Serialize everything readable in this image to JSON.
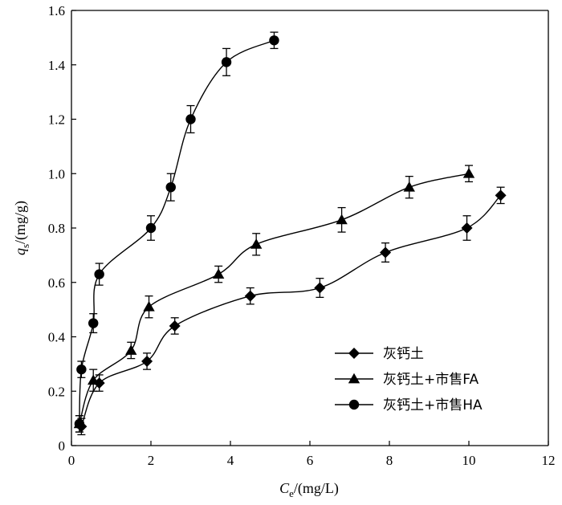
{
  "chart_data": {
    "type": "scatter",
    "title": "",
    "xlabel": {
      "italic": "C",
      "sub": "e",
      "rest": "/(mg/L)"
    },
    "ylabel": {
      "italic": "q",
      "sub": "s",
      "rest": "/(mg/g)"
    },
    "xlim": [
      0,
      12
    ],
    "ylim": [
      0,
      1.6
    ],
    "xticks": [
      0,
      2,
      4,
      6,
      8,
      10,
      12
    ],
    "yticks": [
      0,
      0.2,
      0.4,
      0.6,
      0.8,
      1.0,
      1.2,
      1.4,
      1.6
    ],
    "xtick_labels": [
      "0",
      "2",
      "4",
      "6",
      "8",
      "10",
      "12"
    ],
    "ytick_labels": [
      "0",
      "0.2",
      "0.4",
      "0.6",
      "0.8",
      "1.0",
      "1.2",
      "1.4",
      "1.6"
    ],
    "grid": false,
    "legend_position": "bottom-right",
    "series": [
      {
        "name": "灰钙土",
        "marker": "diamond",
        "x": [
          0.25,
          0.7,
          1.9,
          2.6,
          4.5,
          6.25,
          7.9,
          9.95,
          10.8
        ],
        "y": [
          0.07,
          0.23,
          0.31,
          0.44,
          0.55,
          0.58,
          0.71,
          0.8,
          0.92
        ],
        "err": [
          0.03,
          0.03,
          0.03,
          0.03,
          0.03,
          0.035,
          0.035,
          0.045,
          0.03
        ]
      },
      {
        "name": "灰钙土+市售FA",
        "marker": "triangle",
        "x": [
          0.2,
          0.55,
          1.5,
          1.95,
          3.7,
          4.65,
          6.8,
          8.5,
          10.0
        ],
        "y": [
          0.08,
          0.24,
          0.35,
          0.51,
          0.63,
          0.74,
          0.83,
          0.95,
          1.0
        ],
        "err": [
          0.03,
          0.04,
          0.03,
          0.04,
          0.03,
          0.04,
          0.045,
          0.04,
          0.03
        ]
      },
      {
        "name": "灰钙土+市售HA",
        "marker": "circle",
        "x": [
          0.2,
          0.25,
          0.55,
          0.7,
          2.0,
          2.5,
          3.0,
          3.9,
          5.1
        ],
        "y": [
          0.08,
          0.28,
          0.45,
          0.63,
          0.8,
          0.95,
          1.2,
          1.41,
          1.49
        ],
        "err": [
          0.03,
          0.03,
          0.035,
          0.04,
          0.045,
          0.05,
          0.05,
          0.05,
          0.03
        ]
      }
    ]
  }
}
